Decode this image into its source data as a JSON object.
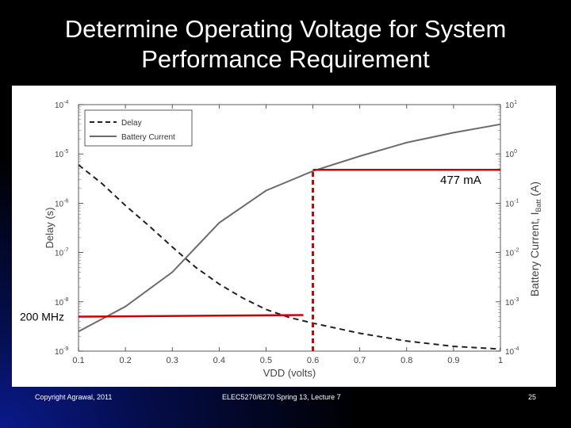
{
  "slide": {
    "title_line1": "Determine Operating Voltage for System",
    "title_line2": "Performance Requirement"
  },
  "footer": {
    "left": "Copyright Agrawal, 2011",
    "center": "ELEC5270/6270 Spring 13, Lecture 7",
    "right": "25"
  },
  "chart_data": {
    "type": "line",
    "xlabel": "VDD (volts)",
    "ylabel_left": "Delay (s)",
    "ylabel_right": "Battery Current, I",
    "ylabel_right_subscript": "Batt",
    "ylabel_right_unit": "(A)",
    "xlim": [
      0.1,
      1.0
    ],
    "ylim_left": [
      1e-09,
      0.0001
    ],
    "ylim_right": [
      0.0001,
      10
    ],
    "yscale": "log",
    "x_ticks": [
      "0.1",
      "0.2",
      "0.3",
      "0.4",
      "0.5",
      "0.6",
      "0.7",
      "0.8",
      "0.9",
      "1"
    ],
    "left_ticks": [
      {
        "base": "10",
        "exp": "-9"
      },
      {
        "base": "10",
        "exp": "-8"
      },
      {
        "base": "10",
        "exp": "-7"
      },
      {
        "base": "10",
        "exp": "-6"
      },
      {
        "base": "10",
        "exp": "-5"
      },
      {
        "base": "10",
        "exp": "-4"
      }
    ],
    "right_ticks": [
      {
        "base": "10",
        "exp": "-4"
      },
      {
        "base": "10",
        "exp": "-3"
      },
      {
        "base": "10",
        "exp": "-2"
      },
      {
        "base": "10",
        "exp": "-1"
      },
      {
        "base": "10",
        "exp": "0"
      },
      {
        "base": "10",
        "exp": "1"
      }
    ],
    "legend_position": "top-left",
    "series": [
      {
        "name": "Delay",
        "axis": "left",
        "style": "dashed",
        "color": "#222222",
        "x": [
          0.1,
          0.15,
          0.2,
          0.25,
          0.3,
          0.35,
          0.4,
          0.45,
          0.5,
          0.55,
          0.6,
          0.7,
          0.8,
          0.9,
          1.0
        ],
        "y": [
          6e-06,
          2.5e-06,
          9e-07,
          3.5e-07,
          1.3e-07,
          5e-08,
          2.3e-08,
          1.2e-08,
          7e-09,
          4.8e-09,
          3.7e-09,
          2.3e-09,
          1.6e-09,
          1.25e-09,
          1.1e-09
        ]
      },
      {
        "name": "Battery Current",
        "axis": "right",
        "style": "solid",
        "color": "#6b6b6b",
        "x": [
          0.1,
          0.2,
          0.3,
          0.4,
          0.5,
          0.6,
          0.7,
          0.8,
          0.9,
          1.0
        ],
        "y": [
          0.00025,
          0.0008,
          0.004,
          0.04,
          0.18,
          0.45,
          0.9,
          1.7,
          2.7,
          4.0
        ]
      }
    ],
    "annotations": [
      {
        "text": "477 mA",
        "color": "#cc0000"
      },
      {
        "text": "200 MHz",
        "color": "#cc0000"
      }
    ],
    "marker_lines": {
      "vdd": 0.6,
      "current_A": 0.477,
      "delay_s": 5e-09,
      "color": "#cc0000"
    }
  }
}
